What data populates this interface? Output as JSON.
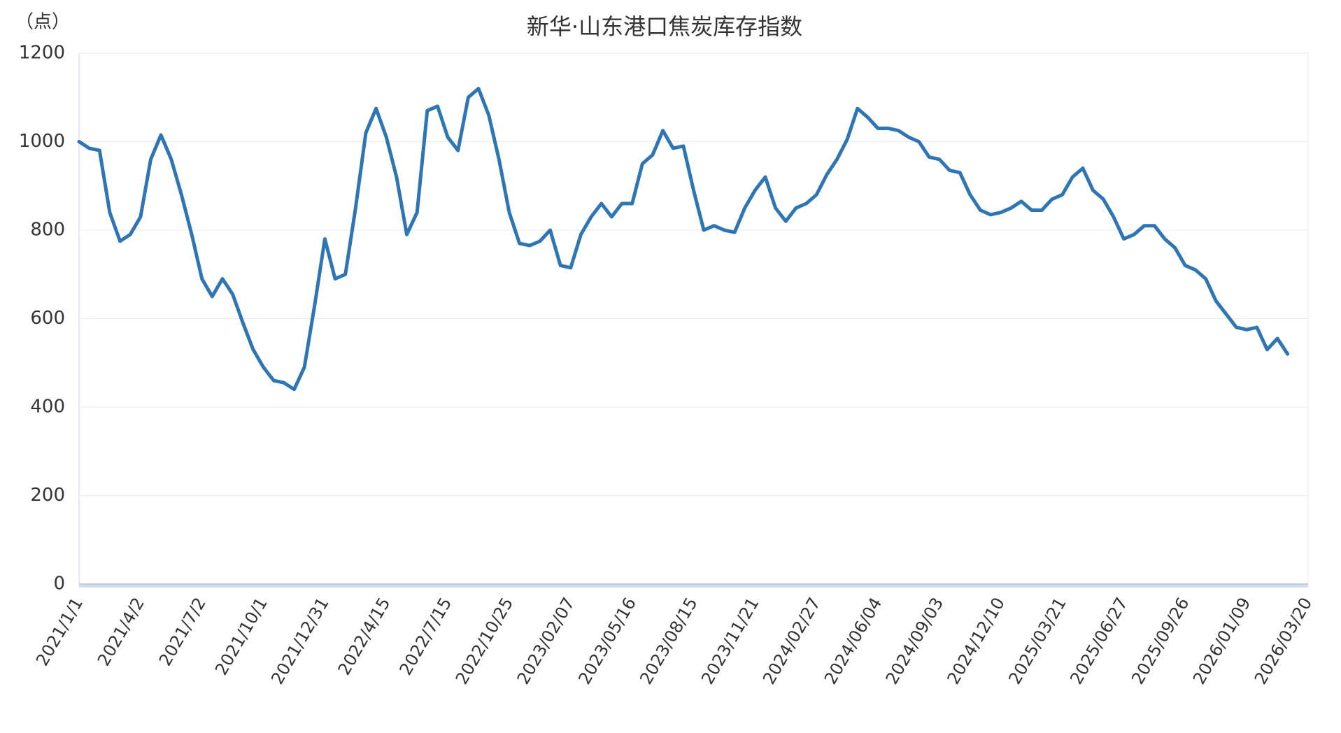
{
  "chart_data": {
    "type": "line",
    "title": "新华·山东港口焦炭库存指数",
    "y_axis_label": "（点）",
    "categories": [
      "2021/1/1",
      null,
      null,
      null,
      null,
      null,
      "2021/4/2",
      null,
      null,
      null,
      null,
      null,
      "2021/7/2",
      null,
      null,
      null,
      null,
      null,
      "2021/10/1",
      null,
      null,
      null,
      null,
      null,
      "2021/12/31",
      null,
      null,
      null,
      null,
      null,
      "2022/4/15",
      null,
      null,
      null,
      null,
      null,
      "2022/7/15",
      null,
      null,
      null,
      null,
      null,
      "2022/10/25",
      null,
      null,
      null,
      null,
      null,
      "2023/02/07",
      null,
      null,
      null,
      null,
      null,
      "2023/05/16",
      null,
      null,
      null,
      null,
      null,
      "2023/08/15",
      null,
      null,
      null,
      null,
      null,
      "2023/11/21",
      null,
      null,
      null,
      null,
      null,
      "2024/02/27",
      null,
      null,
      null,
      null,
      null,
      "2024/06/04",
      null,
      null,
      null,
      null,
      null,
      "2024/09/03",
      null,
      null,
      null,
      null,
      null,
      "2024/12/10",
      null,
      null,
      null,
      null,
      null,
      "2025/03/21",
      null,
      null,
      null,
      null,
      null,
      "2025/06/27",
      null,
      null,
      null,
      null,
      null,
      "2025/09/26",
      null,
      null,
      null,
      null,
      null,
      "2026/01/09",
      null,
      null,
      null,
      null,
      null,
      "2026/03/20"
    ],
    "series": [
      {
        "name": "新华·山东港口焦炭库存指数",
        "color": "#2e75b6",
        "values": [
          1000,
          985,
          980,
          840,
          775,
          790,
          830,
          960,
          1015,
          960,
          880,
          790,
          690,
          650,
          690,
          655,
          590,
          530,
          490,
          460,
          455,
          440,
          490,
          630,
          780,
          690,
          700,
          850,
          1020,
          1075,
          1010,
          920,
          790,
          840,
          1070,
          1080,
          1010,
          980,
          1100,
          1120,
          1060,
          960,
          840,
          770,
          765,
          775,
          800,
          720,
          715,
          790,
          830,
          860,
          830,
          860,
          860,
          950,
          970,
          1025,
          985,
          990,
          890,
          800,
          810,
          800,
          795,
          850,
          890,
          920,
          850,
          820,
          850,
          860,
          880,
          925,
          960,
          1005,
          1075,
          1055,
          1030,
          1030,
          1025,
          1010,
          1000,
          965,
          960,
          935,
          930,
          880,
          845,
          835,
          840,
          850,
          865,
          845,
          845,
          870,
          880,
          920,
          940,
          890,
          870,
          830,
          780,
          790,
          810,
          810,
          780,
          760,
          720,
          710,
          690,
          640,
          610,
          580,
          575,
          580,
          530,
          555,
          520,
          null,
          null
        ]
      }
    ],
    "ylim": [
      0,
      1200
    ],
    "yticks": [
      0,
      200,
      400,
      600,
      800,
      1000,
      1200
    ],
    "grid": true
  }
}
